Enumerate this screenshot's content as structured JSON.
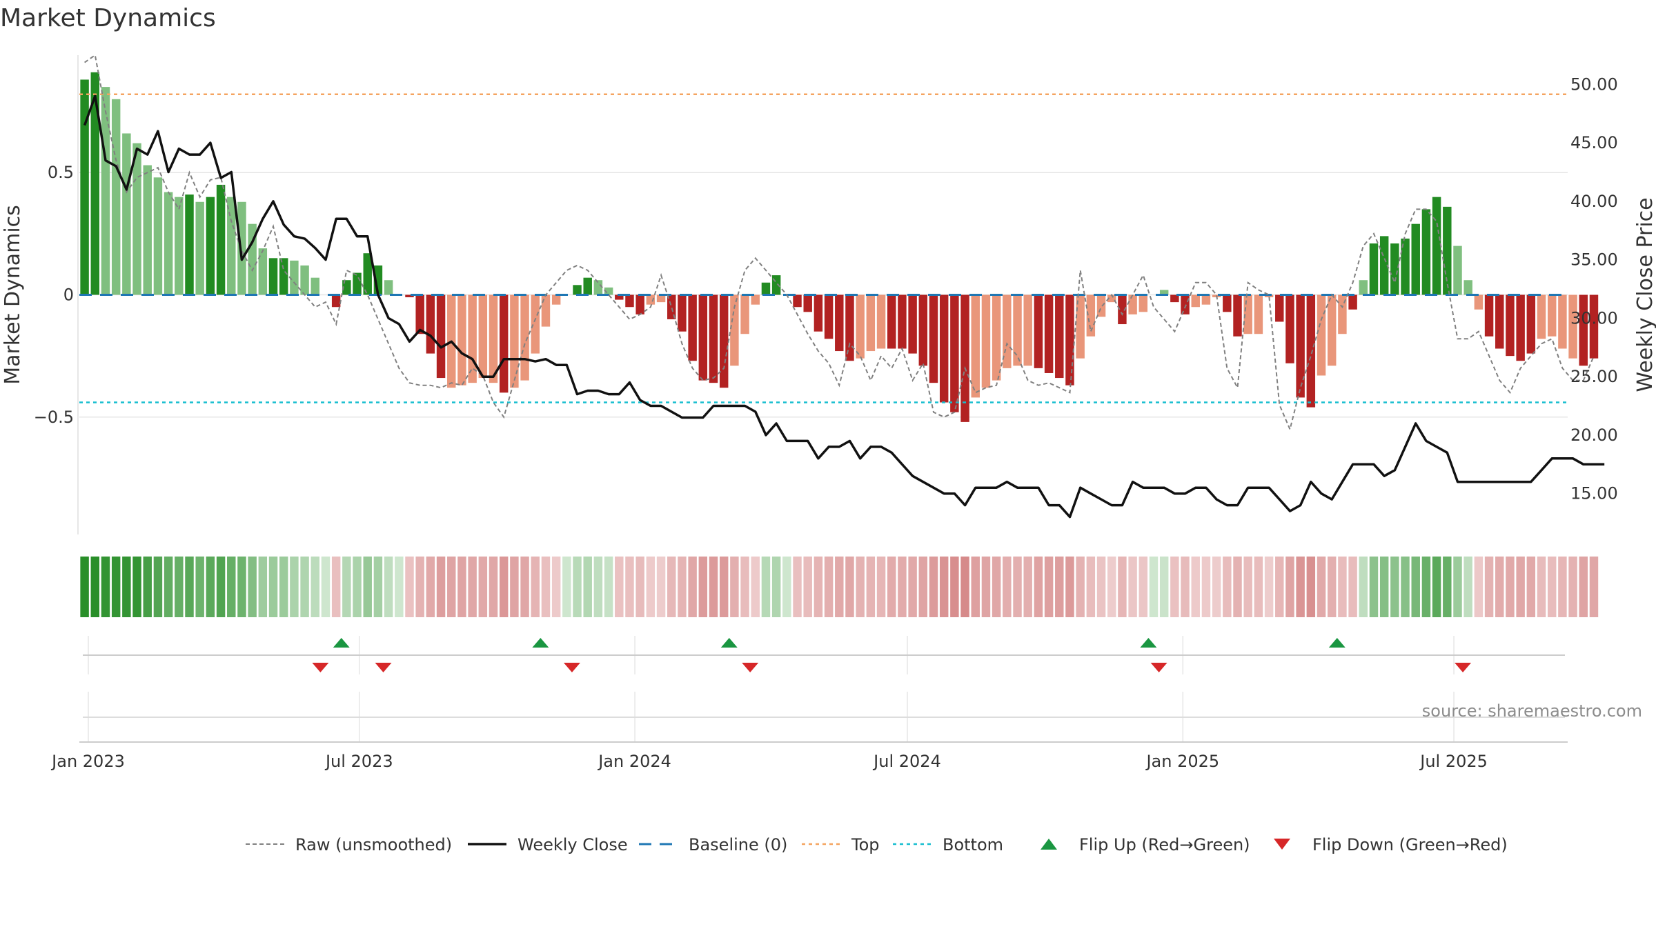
{
  "title": "Market Dynamics",
  "source": "source: sharemaestro.com",
  "colors": {
    "strong_green": "#228b22",
    "light_green": "#7fbf7f",
    "strong_red": "#b22222",
    "light_red": "#e9967a",
    "price_line": "#111111",
    "raw_line": "#808080",
    "baseline": "#1f77b4",
    "top": "#f4a460",
    "bottom": "#17becf",
    "flip_up": "#1a9641",
    "flip_down": "#d62728",
    "grid": "#e6e6e6",
    "source": "#8c8c8c"
  },
  "chart_data": {
    "type": "bar",
    "title": "Market Dynamics",
    "ylabel_left": "Market Dynamics",
    "ylabel_right": "Weekly Close Price",
    "ylim_left": [
      -0.98,
      0.98
    ],
    "ylim_right": [
      11.5,
      52.5
    ],
    "left_ticks": [
      {
        "v": 0.5,
        "label": "0.5"
      },
      {
        "v": 0,
        "label": "0"
      },
      {
        "v": -0.5,
        "label": "−0.5"
      }
    ],
    "right_ticks": [
      {
        "v": 50,
        "label": "50.00"
      },
      {
        "v": 45,
        "label": "45.00"
      },
      {
        "v": 40,
        "label": "40.00"
      },
      {
        "v": 35,
        "label": "35.00"
      },
      {
        "v": 30,
        "label": "30.00"
      },
      {
        "v": 25,
        "label": "25.00"
      },
      {
        "v": 20,
        "label": "20.00"
      },
      {
        "v": 15,
        "label": "15.00"
      }
    ],
    "x_start": "2022-12-26",
    "x_range": [
      "2022-12-26",
      "2025-09-15"
    ],
    "x_ticks": [
      {
        "date": "2023-01-01",
        "label": "Jan 2023"
      },
      {
        "date": "2023-07-01",
        "label": "Jul 2023"
      },
      {
        "date": "2024-01-01",
        "label": "Jan 2024"
      },
      {
        "date": "2024-07-01",
        "label": "Jul 2024"
      },
      {
        "date": "2025-01-01",
        "label": "Jan 2025"
      },
      {
        "date": "2025-07-01",
        "label": "Jul 2025"
      }
    ],
    "top_level": 0.82,
    "bottom_level": -0.44,
    "baseline_level": 0,
    "bars": [
      0.88,
      0.91,
      0.85,
      0.8,
      0.66,
      0.62,
      0.53,
      0.48,
      0.42,
      0.4,
      0.41,
      0.38,
      0.4,
      0.45,
      0.4,
      0.38,
      0.29,
      0.19,
      0.15,
      0.15,
      0.14,
      0.12,
      0.07,
      0.0,
      -0.05,
      0.06,
      0.09,
      0.17,
      0.12,
      0.06,
      0.0,
      -0.01,
      -0.16,
      -0.24,
      -0.34,
      -0.38,
      -0.37,
      -0.36,
      -0.34,
      -0.36,
      -0.4,
      -0.38,
      -0.35,
      -0.24,
      -0.13,
      -0.04,
      0.0,
      0.04,
      0.07,
      0.06,
      0.03,
      -0.02,
      -0.05,
      -0.08,
      -0.04,
      -0.03,
      -0.1,
      -0.15,
      -0.27,
      -0.35,
      -0.36,
      -0.38,
      -0.29,
      -0.16,
      -0.04,
      0.05,
      0.08,
      0.0,
      -0.05,
      -0.07,
      -0.15,
      -0.18,
      -0.23,
      -0.27,
      -0.26,
      -0.23,
      -0.22,
      -0.22,
      -0.22,
      -0.24,
      -0.29,
      -0.36,
      -0.44,
      -0.48,
      -0.52,
      -0.42,
      -0.38,
      -0.35,
      -0.3,
      -0.29,
      -0.29,
      -0.3,
      -0.32,
      -0.34,
      -0.37,
      -0.26,
      -0.17,
      -0.09,
      -0.03,
      -0.12,
      -0.08,
      -0.07,
      0.0,
      0.02,
      -0.03,
      -0.08,
      -0.05,
      -0.04,
      -0.01,
      -0.07,
      -0.17,
      -0.16,
      -0.16,
      -0.01,
      -0.11,
      -0.28,
      -0.42,
      -0.46,
      -0.33,
      -0.29,
      -0.16,
      -0.06,
      0.06,
      0.21,
      0.24,
      0.21,
      0.23,
      0.29,
      0.35,
      0.4,
      0.36,
      0.2,
      0.06,
      -0.06,
      -0.17,
      -0.22,
      -0.25,
      -0.27,
      -0.24,
      -0.18,
      -0.17,
      -0.22,
      -0.26,
      -0.29,
      -0.26
    ],
    "shades": [
      1,
      1,
      0,
      0,
      0,
      0,
      0,
      0,
      0,
      0,
      1,
      0,
      1,
      1,
      0,
      0,
      0,
      0,
      1,
      1,
      0,
      0,
      0,
      0,
      1,
      1,
      1,
      1,
      1,
      0,
      0,
      1,
      1,
      1,
      1,
      0,
      0,
      0,
      0,
      0,
      1,
      0,
      0,
      0,
      0,
      0,
      0,
      1,
      1,
      0,
      0,
      1,
      1,
      1,
      0,
      0,
      1,
      1,
      1,
      1,
      1,
      1,
      0,
      0,
      0,
      1,
      1,
      0,
      1,
      1,
      1,
      1,
      1,
      1,
      0,
      0,
      0,
      1,
      1,
      1,
      1,
      1,
      1,
      1,
      1,
      0,
      0,
      0,
      0,
      0,
      0,
      1,
      1,
      1,
      1,
      0,
      0,
      0,
      0,
      1,
      0,
      0,
      0,
      0,
      1,
      1,
      0,
      0,
      0,
      1,
      1,
      0,
      0,
      0,
      1,
      1,
      1,
      1,
      0,
      0,
      0,
      1,
      0,
      1,
      1,
      1,
      1,
      1,
      1,
      1,
      1,
      0,
      0,
      0,
      1,
      1,
      1,
      1,
      1,
      0,
      0,
      0,
      0,
      1,
      1,
      0
    ],
    "weekly_close": [
      46.5,
      49.0,
      43.5,
      43.0,
      41.0,
      44.5,
      44.0,
      46.0,
      42.5,
      44.5,
      44.0,
      44.0,
      45.0,
      42.0,
      42.5,
      35.0,
      36.5,
      38.5,
      40.0,
      38.0,
      37.0,
      36.8,
      36.0,
      35.0,
      38.5,
      38.5,
      37.0,
      37.0,
      32.0,
      30.0,
      29.5,
      28.0,
      29.0,
      28.5,
      27.5,
      28.0,
      27.0,
      26.5,
      25.0,
      25.0,
      26.5,
      26.5,
      26.5,
      26.3,
      26.5,
      26.0,
      26.0,
      23.5,
      23.8,
      23.8,
      23.5,
      23.5,
      24.5,
      23.0,
      22.5,
      22.5,
      22.0,
      21.5,
      21.5,
      21.5,
      22.5,
      22.5,
      22.5,
      22.5,
      22.0,
      20.0,
      21.0,
      19.5,
      19.5,
      19.5,
      18.0,
      19.0,
      19.0,
      19.5,
      18.0,
      19.0,
      19.0,
      18.5,
      17.5,
      16.5,
      16.0,
      15.5,
      15.0,
      15.0,
      14.0,
      15.5,
      15.5,
      15.5,
      16.0,
      15.5,
      15.5,
      15.5,
      14.0,
      14.0,
      13.0,
      15.5,
      15.0,
      14.5,
      14.0,
      14.0,
      16.0,
      15.5,
      15.5,
      15.5,
      15.0,
      15.0,
      15.5,
      15.5,
      14.5,
      14.0,
      14.0,
      15.5,
      15.5,
      15.5,
      14.5,
      13.5,
      14.0,
      16.0,
      15.0,
      14.5,
      16.0,
      17.5,
      17.5,
      17.5,
      16.5,
      17.0,
      19.0,
      21.0,
      19.5,
      19.0,
      18.5,
      16.0,
      16.0,
      16.0,
      16.0,
      16.0,
      16.0,
      16.0,
      16.0,
      17.0,
      18.0,
      18.0,
      18.0,
      17.5,
      17.5,
      17.5
    ],
    "raw": [
      0.95,
      0.98,
      0.75,
      0.55,
      0.42,
      0.48,
      0.5,
      0.52,
      0.42,
      0.35,
      0.5,
      0.4,
      0.47,
      0.48,
      0.3,
      0.18,
      0.1,
      0.18,
      0.28,
      0.1,
      0.05,
      0.0,
      -0.05,
      -0.03,
      -0.12,
      0.1,
      0.08,
      0.0,
      -0.1,
      -0.2,
      -0.3,
      -0.36,
      -0.37,
      -0.37,
      -0.38,
      -0.36,
      -0.37,
      -0.3,
      -0.33,
      -0.44,
      -0.5,
      -0.35,
      -0.2,
      -0.1,
      0.0,
      0.05,
      0.1,
      0.12,
      0.1,
      0.05,
      0.0,
      -0.05,
      -0.1,
      -0.08,
      -0.05,
      0.08,
      -0.05,
      -0.2,
      -0.3,
      -0.35,
      -0.34,
      -0.3,
      -0.05,
      0.1,
      0.15,
      0.1,
      0.05,
      0.0,
      -0.08,
      -0.16,
      -0.23,
      -0.28,
      -0.37,
      -0.2,
      -0.25,
      -0.35,
      -0.25,
      -0.3,
      -0.22,
      -0.35,
      -0.28,
      -0.48,
      -0.5,
      -0.48,
      -0.3,
      -0.4,
      -0.38,
      -0.37,
      -0.2,
      -0.25,
      -0.35,
      -0.37,
      -0.36,
      -0.38,
      -0.4,
      0.1,
      -0.15,
      -0.05,
      0.0,
      -0.08,
      0.0,
      0.08,
      -0.05,
      -0.1,
      -0.15,
      -0.05,
      0.05,
      0.05,
      0.0,
      -0.3,
      -0.38,
      0.05,
      0.02,
      0.0,
      -0.45,
      -0.55,
      -0.38,
      -0.25,
      -0.1,
      0.0,
      -0.05,
      0.05,
      0.2,
      0.25,
      0.15,
      0.05,
      0.25,
      0.35,
      0.35,
      0.3,
      0.05,
      -0.18,
      -0.18,
      -0.15,
      -0.25,
      -0.35,
      -0.4,
      -0.3,
      -0.25,
      -0.2,
      -0.18,
      -0.3,
      -0.35,
      -0.35,
      -0.25
    ],
    "flip_up": [
      "2023-06-19",
      "2023-10-30",
      "2024-03-04",
      "2024-12-09",
      "2025-04-14"
    ],
    "flip_down": [
      "2023-06-05",
      "2023-07-17",
      "2023-11-20",
      "2024-03-18",
      "2024-12-16",
      "2025-07-07"
    ],
    "legend": [
      {
        "label": "Raw (unsmoothed)",
        "kind": "raw"
      },
      {
        "label": "Weekly Close",
        "kind": "close"
      },
      {
        "label": "Baseline (0)",
        "kind": "baseline"
      },
      {
        "label": "Top",
        "kind": "top"
      },
      {
        "label": "Bottom",
        "kind": "bottom"
      },
      {
        "label": "Flip Up (Red→Green)",
        "kind": "flip_up"
      },
      {
        "label": "Flip Down (Green→Red)",
        "kind": "flip_down"
      }
    ],
    "legend_position": "bottom-center",
    "grid": true
  }
}
